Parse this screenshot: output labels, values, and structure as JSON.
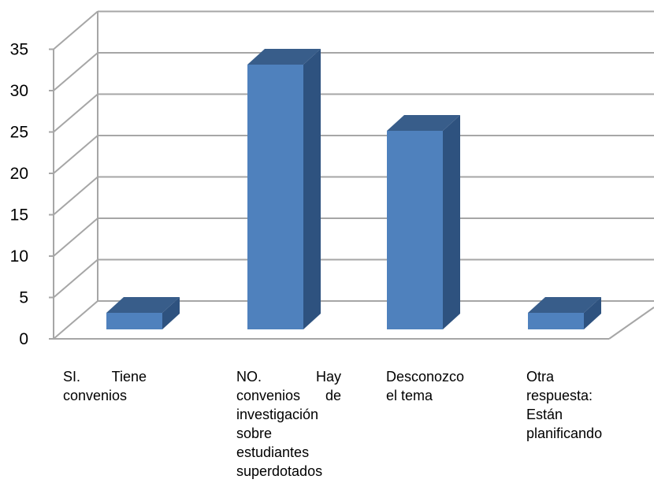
{
  "chart_data": {
    "type": "bar",
    "categories": [
      "SI. Tiene convenios",
      "NO. Hay convenios de investigación sobre estudiantes superdotados",
      "Desconozco el tema",
      "Otra respuesta: Están planificando"
    ],
    "values": [
      2,
      32,
      24,
      2
    ],
    "y_ticks": [
      "0",
      "5",
      "10",
      "15",
      "20",
      "25",
      "30",
      "35"
    ],
    "ylim": [
      0,
      35
    ],
    "grid": true,
    "bar_color": "#4F81BD",
    "bar_side_color": "#2E527F",
    "bar_top_color": "#385D8A",
    "gridline_color": "#A6A6A6"
  }
}
